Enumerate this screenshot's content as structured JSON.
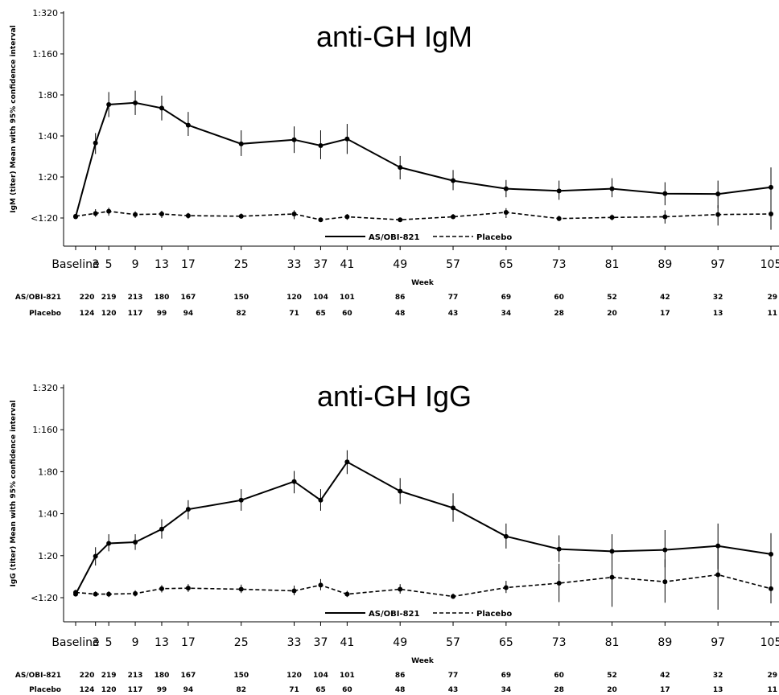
{
  "chart_data": [
    {
      "type": "line",
      "title": "anti-GH IgM",
      "ylabel": "IgM (titer) Mean with 95% confidence interval",
      "xlabel": "Week",
      "x": [
        0,
        3,
        5,
        9,
        13,
        17,
        25,
        33,
        37,
        41,
        49,
        57,
        65,
        73,
        81,
        89,
        97,
        105
      ],
      "x_tick_labels": [
        "Baseline",
        "3",
        "5",
        "9",
        "13",
        "17",
        "25",
        "33",
        "37",
        "41",
        "49",
        "57",
        "65",
        "73",
        "81",
        "89",
        "97",
        "105"
      ],
      "y_scale": "log2",
      "y_ticks": [
        10,
        20,
        40,
        80,
        160,
        320
      ],
      "y_tick_labels": [
        "<1:20",
        "1:20",
        "1:40",
        "1:80",
        "1:160",
        "1:320"
      ],
      "ylim": [
        7.5,
        320
      ],
      "series": [
        {
          "name": "AS/OBI-821",
          "style": "solid",
          "values": [
            10.2,
            35.5,
            68,
            70,
            64,
            48,
            35,
            37.5,
            34,
            38,
            23.5,
            18.8,
            16.4,
            15.8,
            16.4,
            15.1,
            15,
            16.8
          ],
          "ci_low": [
            9.9,
            29.5,
            55,
            57,
            52,
            40,
            28.5,
            30,
            27,
            29.5,
            19.2,
            16,
            14.2,
            13.6,
            14.2,
            12.4,
            11.8,
            12.4
          ],
          "ci_high": [
            10.6,
            42,
            84,
            86,
            79,
            60,
            44,
            47,
            44,
            49,
            28.5,
            22.5,
            19,
            18.8,
            19.6,
            18.3,
            18.8,
            23.5
          ]
        },
        {
          "name": "Placebo",
          "style": "dashed",
          "values": [
            10.3,
            10.8,
            11.2,
            10.6,
            10.7,
            10.4,
            10.3,
            10.7,
            9.7,
            10.2,
            9.7,
            10.2,
            11,
            9.9,
            10.1,
            10.2,
            10.6,
            10.7
          ],
          "ci_low": [
            10,
            10.2,
            10.4,
            10,
            10,
            9.9,
            9.9,
            9.8,
            9.5,
            9.7,
            9.5,
            9.8,
            10,
            9.5,
            9.6,
            9.1,
            8.8,
            8.2
          ],
          "ci_high": [
            10.6,
            11.6,
            11.9,
            11.2,
            11.3,
            10.9,
            10.8,
            11.4,
            10,
            10.7,
            9.9,
            10.7,
            11.8,
            10.4,
            10.6,
            11.4,
            12.4,
            14.2
          ]
        }
      ],
      "legend": {
        "position": "bottom-center",
        "items": [
          {
            "label": "AS/OBI-821",
            "style": "solid"
          },
          {
            "label": "Placebo",
            "style": "dashed"
          }
        ]
      },
      "risk_table": {
        "rows": [
          {
            "label": "AS/OBI-821",
            "values": [
              "220",
              "",
              "219",
              "213",
              "180",
              "167",
              "150",
              "120",
              "104",
              "101",
              "86",
              "77",
              "69",
              "60",
              "52",
              "42",
              "32",
              "29"
            ]
          },
          {
            "label": "Placebo",
            "values": [
              "124",
              "",
              "120",
              "117",
              "99",
              "94",
              "82",
              "71",
              "65",
              "60",
              "48",
              "43",
              "34",
              "28",
              "20",
              "17",
              "13",
              "11"
            ]
          }
        ]
      }
    },
    {
      "type": "line",
      "title": "anti-GH IgG",
      "ylabel": "IgG (titer) Mean with 95% confidence interval",
      "xlabel": "Week",
      "x": [
        0,
        3,
        5,
        9,
        13,
        17,
        25,
        33,
        37,
        41,
        49,
        57,
        65,
        73,
        81,
        89,
        97,
        105
      ],
      "x_tick_labels": [
        "Baseline",
        "3",
        "5",
        "9",
        "13",
        "17",
        "25",
        "33",
        "37",
        "41",
        "49",
        "57",
        "65",
        "73",
        "81",
        "89",
        "97",
        "105"
      ],
      "y_scale": "log2",
      "y_ticks": [
        10,
        20,
        40,
        80,
        160,
        320
      ],
      "y_tick_labels": [
        "<1:20",
        "1:20",
        "1:40",
        "1:80",
        "1:160",
        "1:320"
      ],
      "ylim": [
        7.5,
        320
      ],
      "series": [
        {
          "name": "AS/OBI-821",
          "style": "solid",
          "values": [
            10.6,
            19.8,
            24.5,
            25,
            31,
            43,
            50,
            68,
            50,
            94,
            58,
            44,
            27.5,
            22.3,
            21.5,
            22,
            23.5,
            20.5
          ],
          "ci_low": [
            10.2,
            17,
            21.5,
            22,
            26.5,
            36.5,
            42,
            56,
            42,
            77,
            47,
            35,
            22.5,
            18,
            16.5,
            16.5,
            16,
            14.6
          ],
          "ci_high": [
            11.2,
            23,
            28.5,
            28.5,
            36.5,
            50,
            60,
            81,
            60,
            114,
            72,
            56,
            34,
            28,
            28.5,
            30.5,
            34,
            29
          ]
        },
        {
          "name": "Placebo",
          "style": "dashed",
          "values": [
            10.9,
            10.6,
            10.6,
            10.7,
            11.6,
            11.7,
            11.5,
            11.2,
            12.3,
            10.6,
            11.5,
            10.2,
            11.8,
            12.7,
            14,
            13,
            14.6,
            11.6
          ],
          "ci_low": [
            10.5,
            10.2,
            10.1,
            10.2,
            10.9,
            11,
            10.8,
            10.4,
            11.3,
            10.1,
            10.7,
            9.8,
            10.8,
            9.3,
            8.6,
            9.2,
            8.2,
            9.1
          ],
          "ci_high": [
            11.4,
            11.1,
            11.1,
            11.3,
            12.3,
            12.5,
            12.4,
            12.2,
            13.6,
            11.2,
            12.5,
            10.7,
            13.2,
            17.5,
            20.5,
            18.8,
            23.5,
            14.6
          ]
        }
      ],
      "legend": {
        "position": "bottom-center",
        "items": [
          {
            "label": "AS/OBI-821",
            "style": "solid"
          },
          {
            "label": "Placebo",
            "style": "dashed"
          }
        ]
      },
      "risk_table": {
        "rows": [
          {
            "label": "AS/OBI-821",
            "values": [
              "220",
              "",
              "219",
              "213",
              "180",
              "167",
              "150",
              "120",
              "104",
              "101",
              "86",
              "77",
              "69",
              "60",
              "52",
              "42",
              "32",
              "29"
            ]
          },
          {
            "label": "Placebo",
            "values": [
              "124",
              "",
              "120",
              "117",
              "99",
              "94",
              "82",
              "71",
              "65",
              "60",
              "48",
              "43",
              "34",
              "28",
              "20",
              "17",
              "13",
              "11"
            ]
          }
        ]
      }
    }
  ]
}
